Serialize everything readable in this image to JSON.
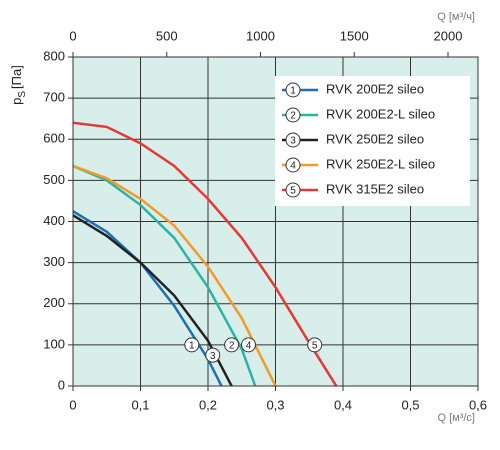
{
  "chart_data": {
    "type": "line",
    "ylabel": {
      "symbol": "p",
      "subscript": "S",
      "unit": "[Па]"
    },
    "xlabel": "Q [м³/с]",
    "x2label": "Q [м³/ч]",
    "xlim": [
      0,
      0.6
    ],
    "xticks": [
      0,
      {
        "value": 0.1,
        "label": "0,1"
      },
      {
        "value": 0.2,
        "label": "0,2"
      },
      {
        "value": 0.3,
        "label": "0,3"
      },
      {
        "value": 0.4,
        "label": "0,4"
      },
      {
        "value": 0.5,
        "label": "0,5"
      },
      {
        "value": 0.6,
        "label": "0,6"
      }
    ],
    "x2lim": [
      0,
      2160
    ],
    "x2ticks": [
      0,
      500,
      1000,
      1500,
      2000
    ],
    "ylim": [
      0,
      800
    ],
    "yticks": [
      0,
      100,
      200,
      300,
      400,
      500,
      600,
      700,
      800
    ],
    "grid": true,
    "legend": "top-right",
    "series": [
      {
        "name": "RVK 200E2 sileo",
        "color": "#1f6fb5",
        "marker": {
          "label": "1",
          "x": 0.176,
          "y": 100
        },
        "x": [
          0,
          0.05,
          0.1,
          0.15,
          0.2,
          0.22
        ],
        "values": [
          425,
          375,
          300,
          195,
          65,
          0
        ]
      },
      {
        "name": "RVK 200E2-L sileo",
        "color": "#2bb3a3",
        "marker": {
          "label": "2",
          "x": 0.235,
          "y": 100
        },
        "x": [
          0,
          0.05,
          0.1,
          0.15,
          0.2,
          0.25,
          0.27
        ],
        "values": [
          535,
          500,
          440,
          360,
          240,
          90,
          0
        ]
      },
      {
        "name": "RVK 250E2 sileo",
        "color": "#222222",
        "marker": {
          "label": "3",
          "x": 0.207,
          "y": 75
        },
        "x": [
          0,
          0.05,
          0.1,
          0.15,
          0.2,
          0.235
        ],
        "values": [
          415,
          365,
          300,
          220,
          110,
          0
        ]
      },
      {
        "name": "RVK 250E2-L sileo",
        "color": "#f39a2a",
        "marker": {
          "label": "4",
          "x": 0.26,
          "y": 100
        },
        "x": [
          0,
          0.05,
          0.1,
          0.15,
          0.2,
          0.25,
          0.3
        ],
        "values": [
          535,
          505,
          455,
          390,
          290,
          165,
          0
        ]
      },
      {
        "name": "RVK 315E2 sileo",
        "color": "#e53935",
        "marker": {
          "label": "5",
          "x": 0.358,
          "y": 100
        },
        "x": [
          0,
          0.05,
          0.1,
          0.15,
          0.2,
          0.25,
          0.3,
          0.35,
          0.39
        ],
        "values": [
          640,
          630,
          590,
          535,
          455,
          360,
          240,
          105,
          0
        ]
      }
    ]
  }
}
